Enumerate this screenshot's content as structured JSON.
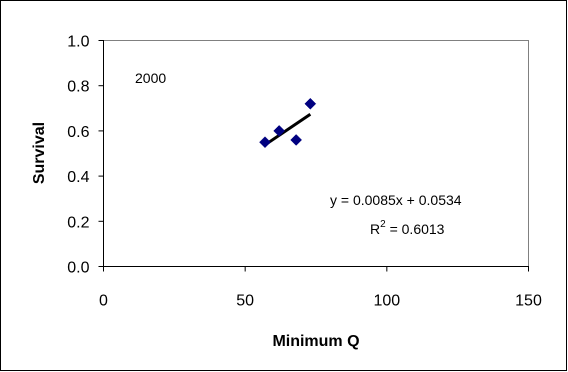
{
  "chart_data": {
    "type": "scatter",
    "title": "",
    "xlabel": "Minimum Q",
    "ylabel": "Survival",
    "xlim": [
      0,
      150
    ],
    "ylim": [
      0.0,
      1.0
    ],
    "x_ticks": [
      "0",
      "50",
      "100",
      "150"
    ],
    "y_ticks": [
      "0.0",
      "0.2",
      "0.4",
      "0.6",
      "0.8",
      "1.0"
    ],
    "series": [
      {
        "points": [
          {
            "x": 57,
            "y": 0.55
          },
          {
            "x": 62,
            "y": 0.6
          },
          {
            "x": 68,
            "y": 0.56
          },
          {
            "x": 73,
            "y": 0.72
          }
        ],
        "color": "#000080",
        "marker": "diamond"
      }
    ],
    "trendline": {
      "slope": 0.0085,
      "intercept": 0.0534,
      "x_range": [
        57,
        73
      ],
      "color": "#000000"
    },
    "annotations": {
      "year_label": "2000",
      "equation": "y = 0.0085x + 0.0534",
      "r2_prefix": "R",
      "r2_sup": "2",
      "r2_value": " = 0.6013"
    },
    "grid": false,
    "legend": "none"
  }
}
